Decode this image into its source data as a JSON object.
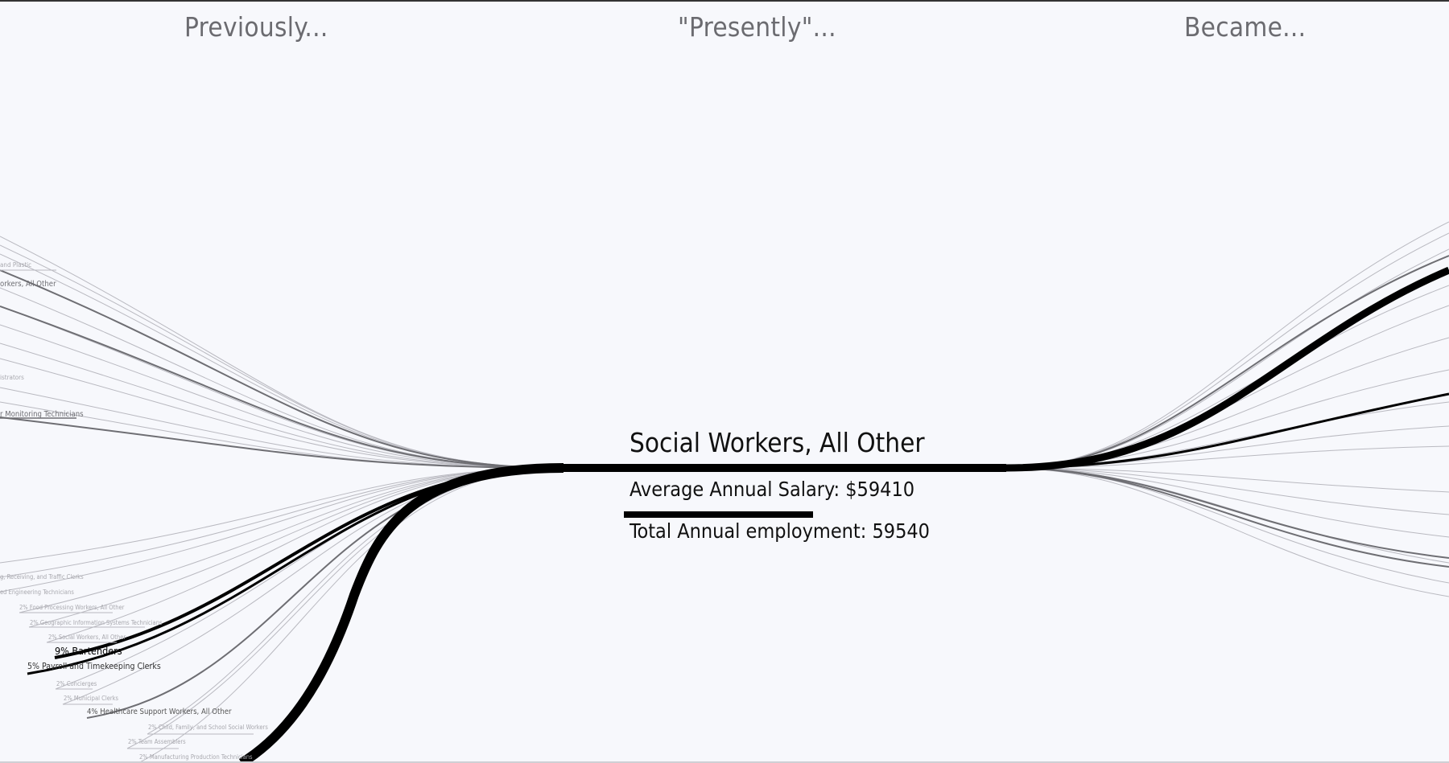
{
  "headers": {
    "previously": "Previously...",
    "presently": "\"Presently\"...",
    "became": "Became..."
  },
  "center": {
    "title": "Social Workers, All Other",
    "salary": "Average Annual Salary: $59410",
    "employment": "Total Annual employment: 59540",
    "salary_fraction": 0.27
  },
  "previous_labels": [
    {
      "text": "and Plastic",
      "weight": 1
    },
    {
      "text": "orkers, All Other",
      "weight": 2
    },
    {
      "text": "istrators",
      "weight": 1
    },
    {
      "text": "r Monitoring Technicians",
      "weight": 2
    },
    {
      "text": "g, Receiving, and Traffic Clerks",
      "weight": 1
    },
    {
      "text": "ed Engineering Technicians",
      "weight": 1
    },
    {
      "text": "2% Food Processing Workers, All Other",
      "weight": 1
    },
    {
      "text": "2% Geographic Information Systems Technicians",
      "weight": 1
    },
    {
      "text": "2% Social Workers, All Other",
      "weight": 1
    },
    {
      "text": "9% Bartenders",
      "weight": 9
    },
    {
      "text": "5% Payroll and Timekeeping Clerks",
      "weight": 5
    },
    {
      "text": "2% Concierges",
      "weight": 1
    },
    {
      "text": "2% Municipal Clerks",
      "weight": 1
    },
    {
      "text": "4% Healthcare Support Workers, All Other",
      "weight": 4
    },
    {
      "text": "2% Child, Family, and School Social Workers",
      "weight": 1
    },
    {
      "text": "2% Team Assemblers",
      "weight": 1
    },
    {
      "text": "2% Manufacturing Production Technicians",
      "weight": 1
    }
  ],
  "colors": {
    "background": "#f7f8fc",
    "strong": "#000000",
    "faint": "#b9b9c0",
    "label_faint": "#a8a8ae"
  }
}
